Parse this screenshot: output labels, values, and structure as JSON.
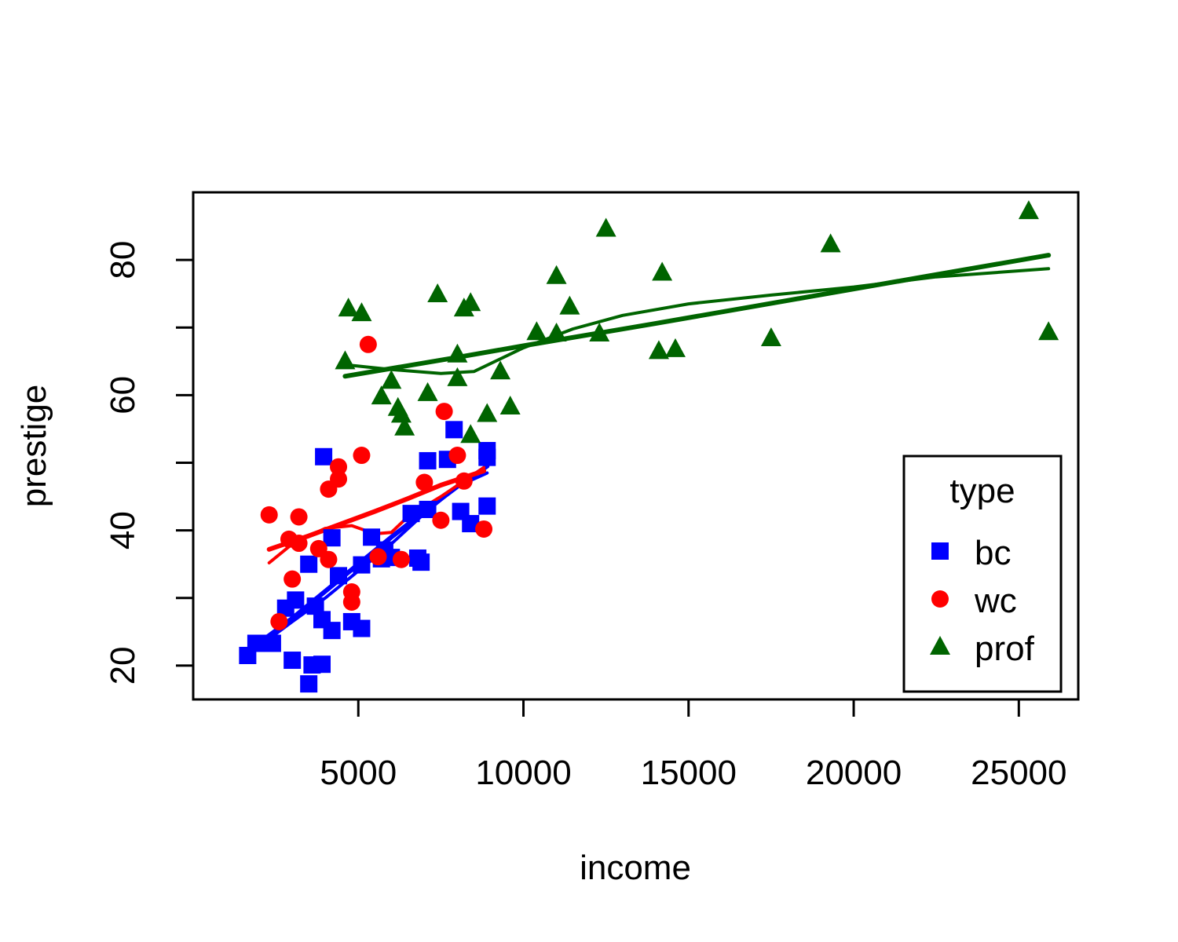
{
  "chart_data": {
    "type": "scatter",
    "xlabel": "income",
    "ylabel": "prestige",
    "xlim": [
      0,
      26800
    ],
    "ylim": [
      15,
      90
    ],
    "x_ticks": [
      5000,
      10000,
      15000,
      20000,
      25000
    ],
    "y_ticks": [
      20,
      40,
      60,
      80
    ],
    "grid": false,
    "legend": {
      "title": "type",
      "placement": "bottom-right",
      "entries": [
        "bc",
        "wc",
        "prof"
      ]
    },
    "series": [
      {
        "name": "bc",
        "marker": "square",
        "color": "#0000ff",
        "points": [
          [
            1650,
            21.5
          ],
          [
            1900,
            23.3
          ],
          [
            2400,
            23.3
          ],
          [
            2800,
            28.5
          ],
          [
            3100,
            29.7
          ],
          [
            3000,
            20.8
          ],
          [
            3500,
            17.3
          ],
          [
            3600,
            20.1
          ],
          [
            3900,
            20.2
          ],
          [
            3700,
            28.8
          ],
          [
            3500,
            35.0
          ],
          [
            3900,
            26.8
          ],
          [
            4200,
            25.2
          ],
          [
            4200,
            38.9
          ],
          [
            4400,
            33.3
          ],
          [
            3950,
            50.9
          ],
          [
            4800,
            26.5
          ],
          [
            5100,
            25.5
          ],
          [
            5100,
            34.9
          ],
          [
            5400,
            39.0
          ],
          [
            5700,
            35.8
          ],
          [
            5800,
            37.1
          ],
          [
            6000,
            36.0
          ],
          [
            6600,
            42.5
          ],
          [
            6800,
            35.9
          ],
          [
            6900,
            35.3
          ],
          [
            7100,
            43.1
          ],
          [
            7100,
            50.3
          ],
          [
            7700,
            50.5
          ],
          [
            7900,
            54.9
          ],
          [
            8100,
            42.8
          ],
          [
            8400,
            41.0
          ],
          [
            8900,
            43.6
          ],
          [
            8900,
            50.8
          ],
          [
            8900,
            51.8
          ]
        ],
        "lines": [
          [
            [
              1900,
              23.0
            ],
            [
              3000,
              27.0
            ],
            [
              4000,
              31.0
            ],
            [
              5000,
              35.0
            ],
            [
              6000,
              39.0
            ],
            [
              7000,
              42.8
            ],
            [
              8000,
              46.5
            ],
            [
              8900,
              49.5
            ]
          ],
          [
            [
              1900,
              22.5
            ],
            [
              3000,
              26.5
            ],
            [
              4000,
              30.0
            ],
            [
              5000,
              34.0
            ],
            [
              6000,
              38.0
            ],
            [
              7000,
              42.5
            ],
            [
              8000,
              46.5
            ],
            [
              8900,
              48.5
            ]
          ]
        ]
      },
      {
        "name": "wc",
        "marker": "circle",
        "color": "#ff0000",
        "points": [
          [
            2300,
            42.3
          ],
          [
            2600,
            26.5
          ],
          [
            2900,
            38.7
          ],
          [
            3000,
            32.8
          ],
          [
            3200,
            42.0
          ],
          [
            3200,
            38.1
          ],
          [
            3800,
            37.3
          ],
          [
            4100,
            46.1
          ],
          [
            4100,
            35.7
          ],
          [
            4400,
            49.4
          ],
          [
            4400,
            47.6
          ],
          [
            4800,
            30.9
          ],
          [
            4800,
            29.4
          ],
          [
            5100,
            51.1
          ],
          [
            5300,
            67.5
          ],
          [
            5600,
            36.1
          ],
          [
            6300,
            35.7
          ],
          [
            7000,
            47.1
          ],
          [
            7500,
            41.5
          ],
          [
            7600,
            57.6
          ],
          [
            8000,
            51.1
          ],
          [
            8200,
            47.3
          ],
          [
            8800,
            40.2
          ]
        ],
        "lines": [
          [
            [
              2300,
              37.2
            ],
            [
              3500,
              39.2
            ],
            [
              4500,
              41.0
            ],
            [
              5500,
              42.8
            ],
            [
              6500,
              44.7
            ],
            [
              7500,
              46.7
            ],
            [
              8800,
              48.8
            ]
          ],
          [
            [
              2300,
              35.2
            ],
            [
              3000,
              38.0
            ],
            [
              4000,
              40.3
            ],
            [
              4800,
              40.7
            ],
            [
              5500,
              39.5
            ],
            [
              6000,
              39.7
            ],
            [
              6500,
              42.0
            ],
            [
              7500,
              45.0
            ],
            [
              8800,
              49.3
            ]
          ]
        ]
      },
      {
        "name": "prof",
        "marker": "triangle",
        "color": "#006400",
        "points": [
          [
            4600,
            65.0
          ],
          [
            4700,
            72.8
          ],
          [
            5100,
            72.1
          ],
          [
            5700,
            59.8
          ],
          [
            6000,
            62.1
          ],
          [
            6200,
            58.1
          ],
          [
            6300,
            57.1
          ],
          [
            6400,
            55.2
          ],
          [
            7100,
            60.3
          ],
          [
            7400,
            74.9
          ],
          [
            8000,
            66.0
          ],
          [
            8000,
            62.5
          ],
          [
            8200,
            72.8
          ],
          [
            8400,
            73.6
          ],
          [
            8400,
            54.1
          ],
          [
            8900,
            57.2
          ],
          [
            9300,
            63.5
          ],
          [
            9600,
            58.3
          ],
          [
            10400,
            69.3
          ],
          [
            11000,
            69.1
          ],
          [
            11000,
            77.6
          ],
          [
            11400,
            73.1
          ],
          [
            12300,
            69.1
          ],
          [
            12500,
            84.6
          ],
          [
            14100,
            66.5
          ],
          [
            14200,
            78.1
          ],
          [
            14600,
            66.8
          ],
          [
            17500,
            68.4
          ],
          [
            19300,
            82.3
          ],
          [
            25300,
            87.2
          ],
          [
            25900,
            69.3
          ]
        ],
        "lines": [
          [
            [
              4600,
              62.8
            ],
            [
              8000,
              65.6
            ],
            [
              10000,
              67.3
            ],
            [
              14000,
              70.6
            ],
            [
              18000,
              74.0
            ],
            [
              22000,
              77.4
            ],
            [
              25900,
              80.7
            ]
          ],
          [
            [
              4600,
              64.5
            ],
            [
              6000,
              63.8
            ],
            [
              7500,
              63.2
            ],
            [
              8500,
              63.5
            ],
            [
              10000,
              67.0
            ],
            [
              11500,
              69.8
            ],
            [
              13000,
              71.8
            ],
            [
              15000,
              73.5
            ],
            [
              17500,
              74.8
            ],
            [
              20000,
              76.0
            ],
            [
              22500,
              77.5
            ],
            [
              25900,
              78.7
            ]
          ]
        ]
      }
    ]
  }
}
